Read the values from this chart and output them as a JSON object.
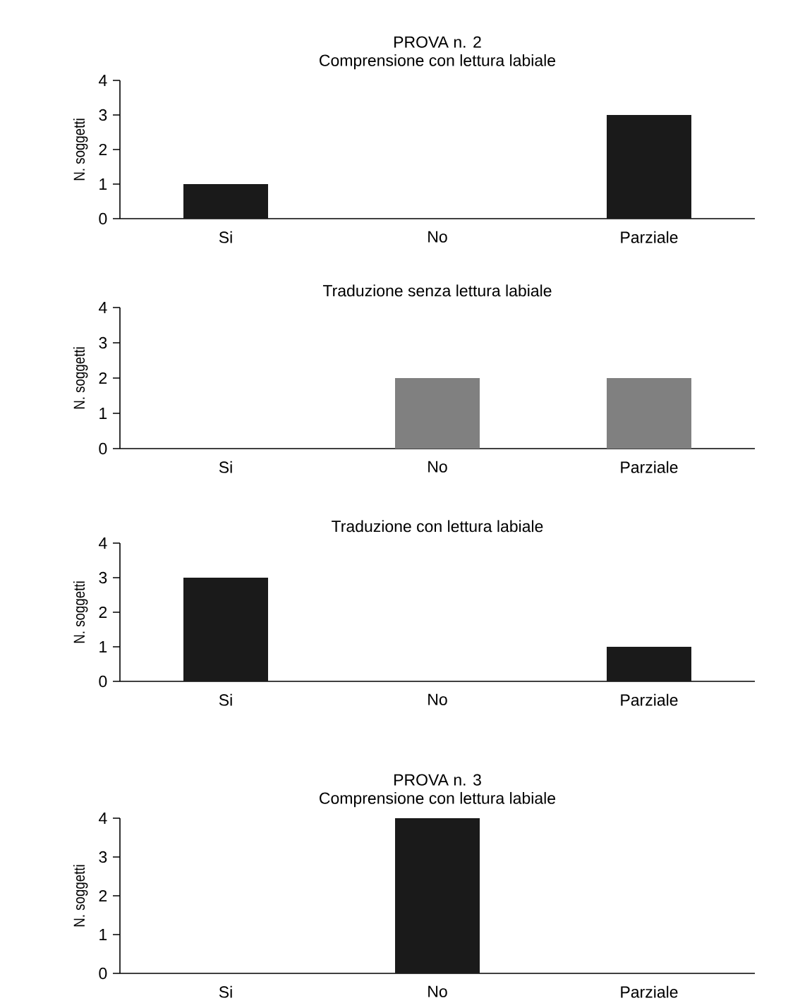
{
  "chart_data": [
    {
      "type": "bar",
      "title": "PROVA n. 2",
      "subtitle": "Comprensione con lettura labiale",
      "ylabel": "N. soggetti",
      "categories": [
        "Si",
        "No",
        "Parziale"
      ],
      "values": [
        1,
        0,
        3
      ],
      "color": "#1a1a1a",
      "ylim": [
        0,
        4
      ],
      "yticks": [
        0,
        1,
        2,
        3,
        4
      ]
    },
    {
      "type": "bar",
      "title": "Traduzione senza lettura labiale",
      "ylabel": "N. soggetti",
      "categories": [
        "Si",
        "No",
        "Parziale"
      ],
      "values": [
        0,
        2,
        2
      ],
      "color": "#808080",
      "ylim": [
        0,
        4
      ],
      "yticks": [
        0,
        1,
        2,
        3,
        4
      ]
    },
    {
      "type": "bar",
      "title": "Traduzione con lettura labiale",
      "ylabel": "N. soggetti",
      "categories": [
        "Si",
        "No",
        "Parziale"
      ],
      "values": [
        3,
        0,
        1
      ],
      "color": "#1a1a1a",
      "ylim": [
        0,
        4
      ],
      "yticks": [
        0,
        1,
        2,
        3,
        4
      ]
    },
    {
      "type": "bar",
      "title": "PROVA n. 3",
      "subtitle": "Comprensione con lettura labiale",
      "ylabel": "N. soggetti",
      "categories": [
        "Si",
        "No",
        "Parziale"
      ],
      "values": [
        0,
        4,
        0
      ],
      "color": "#1a1a1a",
      "ylim": [
        0,
        4
      ],
      "yticks": [
        0,
        1,
        2,
        3,
        4
      ]
    }
  ]
}
